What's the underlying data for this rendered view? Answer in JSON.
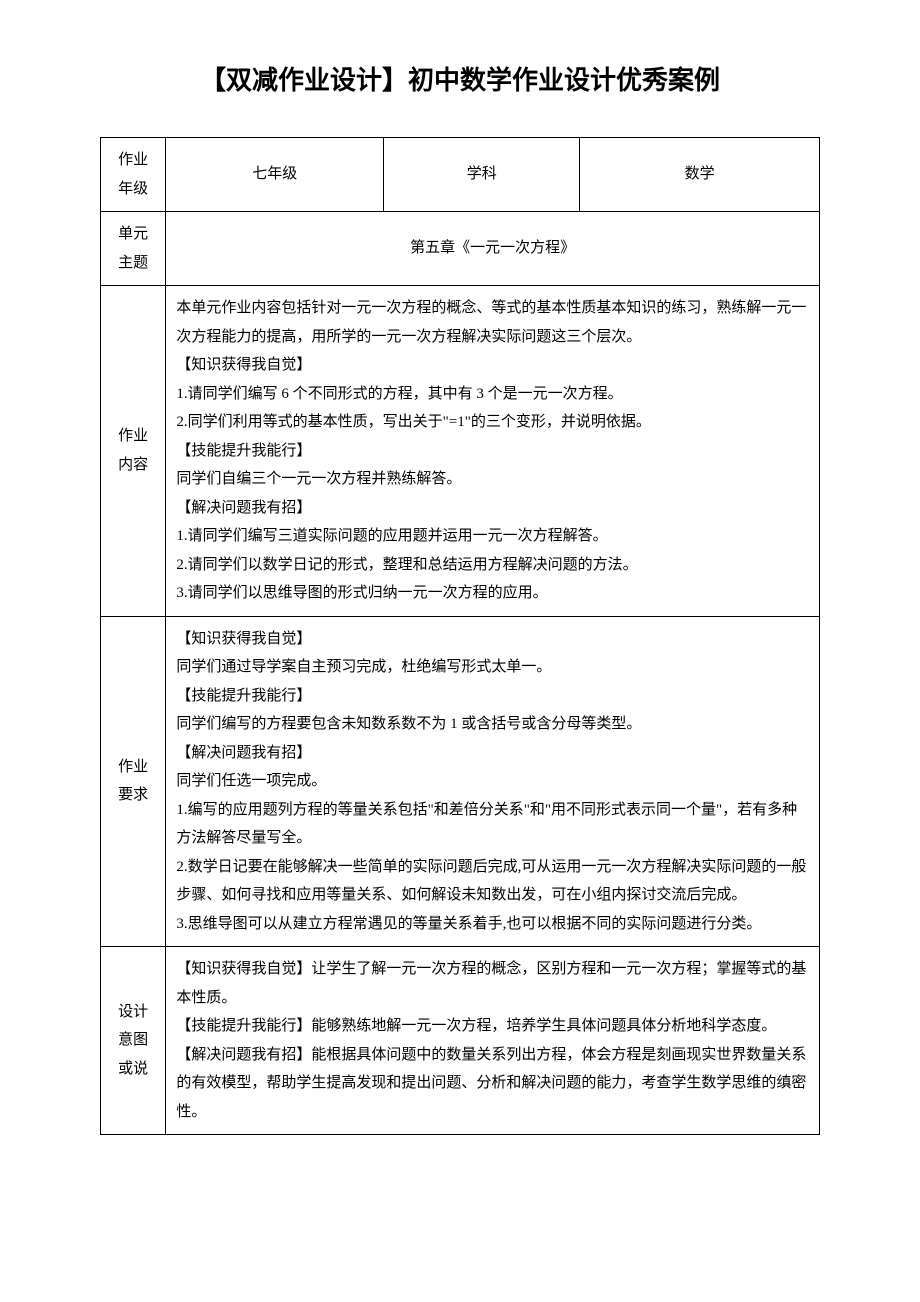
{
  "title": "【双减作业设计】初中数学作业设计优秀案例",
  "header": {
    "grade_label": "作业\n年级",
    "grade_value": "七年级",
    "subject_label": "学科",
    "subject_value": "数学",
    "unit_label": "单元\n主题",
    "unit_value": "第五章《一元一次方程》"
  },
  "sections": {
    "content": {
      "label": "作业\n内容",
      "intro": "本单元作业内容包括针对一元一次方程的概念、等式的基本性质基本知识的练习，熟练解一元一次方程能力的提高，用所学的一元一次方程解决实际问题这三个层次。",
      "part1_heading": "【知识获得我自觉】",
      "part1_item1": "1.请同学们编写 6 个不同形式的方程，其中有 3 个是一元一次方程。",
      "part1_item2": "2.同学们利用等式的基本性质，写出关于\"=1\"的三个变形，并说明依据。",
      "part2_heading": "【技能提升我能行】",
      "part2_item1": "同学们自编三个一元一次方程并熟练解答。",
      "part3_heading": "【解决问题我有招】",
      "part3_item1": "1.请同学们编写三道实际问题的应用题并运用一元一次方程解答。",
      "part3_item2": "2.请同学们以数学日记的形式，整理和总结运用方程解决问题的方法。",
      "part3_item3": "3.请同学们以思维导图的形式归纳一元一次方程的应用。"
    },
    "requirements": {
      "label": "作业\n要求",
      "part1_heading": "【知识获得我自觉】",
      "part1_item1": "同学们通过导学案自主预习完成，杜绝编写形式太单一。",
      "part2_heading": "【技能提升我能行】",
      "part2_item1": "同学们编写的方程要包含未知数系数不为 1 或含括号或含分母等类型。",
      "part3_heading": "【解决问题我有招】",
      "part3_intro": "同学们任选一项完成。",
      "part3_item1": "1.编写的应用题列方程的等量关系包括\"和差倍分关系\"和\"用不同形式表示同一个量\"，若有多种方法解答尽量写全。",
      "part3_item2": "2.数学日记要在能够解决一些简单的实际问题后完成,可从运用一元一次方程解决实际问题的一般步骤、如何寻找和应用等量关系、如何解设未知数出发，可在小组内探讨交流后完成。",
      "part3_item3": "3.思维导图可以从建立方程常遇见的等量关系着手,也可以根据不同的实际问题进行分类。"
    },
    "intent": {
      "label": "设计\n意图\n或说",
      "item1": "【知识获得我自觉】让学生了解一元一次方程的概念，区别方程和一元一次方程；掌握等式的基本性质。",
      "item2": "【技能提升我能行】能够熟练地解一元一次方程，培养学生具体问题具体分析地科学态度。",
      "item3": "【解决问题我有招】能根据具体问题中的数量关系列出方程，体会方程是刻画现实世界数量关系的有效模型，帮助学生提高发现和提出问题、分析和解决问题的能力，考查学生数学思维的缜密性。"
    }
  }
}
